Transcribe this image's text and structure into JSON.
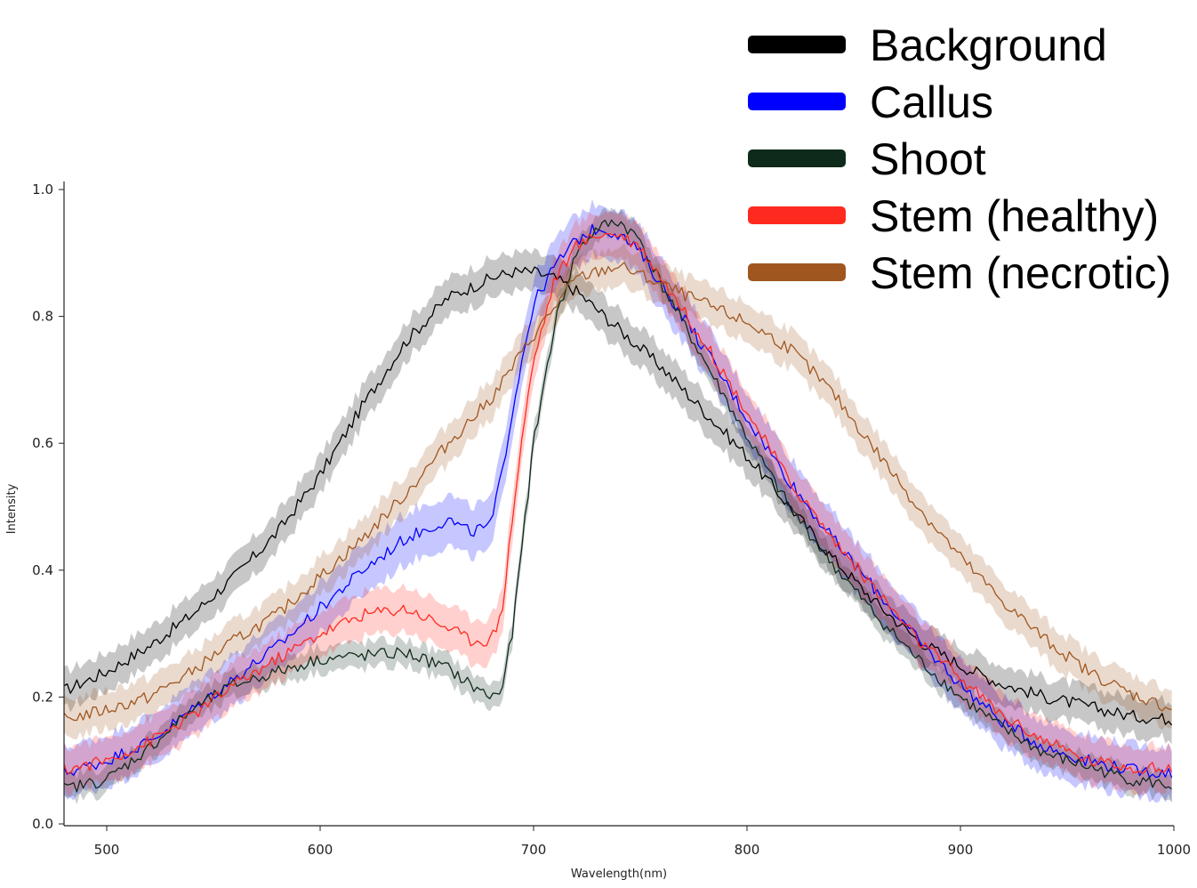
{
  "chart_data": {
    "type": "line",
    "xlabel": "Wavelength(nm)",
    "ylabel": "Intensity",
    "xlim": [
      480,
      1000
    ],
    "ylim": [
      0.0,
      1.0
    ],
    "xticks": [
      "500",
      "600",
      "700",
      "800",
      "900",
      "1000"
    ],
    "yticks": [
      "0.0",
      "0.2",
      "0.4",
      "0.6",
      "0.8",
      "1.0"
    ],
    "legend_position": "top-right",
    "series": [
      {
        "name": "Background",
        "color": "#000000",
        "x": [
          480,
          500,
          520,
          540,
          560,
          580,
          600,
          620,
          640,
          660,
          680,
          690,
          700,
          710,
          720,
          730,
          740,
          760,
          780,
          800,
          820,
          840,
          860,
          880,
          900,
          920,
          940,
          960,
          980,
          1000
        ],
        "values": [
          0.21,
          0.24,
          0.28,
          0.33,
          0.39,
          0.46,
          0.55,
          0.66,
          0.76,
          0.83,
          0.86,
          0.87,
          0.87,
          0.86,
          0.84,
          0.81,
          0.78,
          0.72,
          0.65,
          0.58,
          0.5,
          0.42,
          0.35,
          0.29,
          0.25,
          0.22,
          0.2,
          0.185,
          0.17,
          0.165
        ],
        "band": 0.03
      },
      {
        "name": "Callus",
        "color": "#0000ff",
        "x": [
          480,
          500,
          520,
          540,
          560,
          580,
          600,
          620,
          640,
          660,
          670,
          680,
          685,
          690,
          695,
          700,
          710,
          720,
          730,
          740,
          750,
          760,
          780,
          800,
          820,
          840,
          860,
          880,
          900,
          920,
          940,
          960,
          980,
          1000
        ],
        "values": [
          0.08,
          0.1,
          0.13,
          0.18,
          0.23,
          0.28,
          0.34,
          0.4,
          0.45,
          0.48,
          0.46,
          0.47,
          0.55,
          0.65,
          0.74,
          0.82,
          0.88,
          0.92,
          0.94,
          0.93,
          0.9,
          0.85,
          0.75,
          0.64,
          0.54,
          0.45,
          0.37,
          0.29,
          0.22,
          0.16,
          0.12,
          0.1,
          0.085,
          0.08
        ],
        "band": 0.04
      },
      {
        "name": "Shoot",
        "color": "#0e2a1a",
        "x": [
          480,
          500,
          520,
          540,
          560,
          580,
          600,
          620,
          640,
          660,
          670,
          680,
          685,
          690,
          695,
          700,
          710,
          720,
          730,
          740,
          750,
          760,
          780,
          800,
          820,
          840,
          860,
          880,
          900,
          920,
          940,
          960,
          980,
          1000
        ],
        "values": [
          0.055,
          0.07,
          0.12,
          0.18,
          0.22,
          0.24,
          0.26,
          0.265,
          0.27,
          0.245,
          0.22,
          0.2,
          0.21,
          0.3,
          0.45,
          0.6,
          0.79,
          0.9,
          0.94,
          0.95,
          0.92,
          0.85,
          0.73,
          0.61,
          0.5,
          0.41,
          0.33,
          0.26,
          0.2,
          0.15,
          0.11,
          0.09,
          0.07,
          0.06
        ],
        "band": 0.02
      },
      {
        "name": "Stem (healthy)",
        "color": "#ff2a1f",
        "x": [
          480,
          500,
          520,
          540,
          560,
          580,
          600,
          620,
          640,
          660,
          670,
          680,
          685,
          690,
          695,
          700,
          710,
          720,
          730,
          740,
          750,
          760,
          780,
          800,
          820,
          840,
          860,
          880,
          900,
          920,
          940,
          960,
          980,
          1000
        ],
        "values": [
          0.085,
          0.1,
          0.13,
          0.17,
          0.22,
          0.26,
          0.3,
          0.33,
          0.34,
          0.31,
          0.29,
          0.29,
          0.33,
          0.48,
          0.62,
          0.73,
          0.86,
          0.91,
          0.93,
          0.93,
          0.91,
          0.86,
          0.76,
          0.65,
          0.54,
          0.45,
          0.37,
          0.29,
          0.23,
          0.17,
          0.13,
          0.1,
          0.09,
          0.085
        ],
        "band": 0.035
      },
      {
        "name": "Stem (necrotic)",
        "color": "#a0561f",
        "x": [
          480,
          500,
          520,
          540,
          560,
          580,
          600,
          620,
          640,
          660,
          680,
          700,
          720,
          740,
          760,
          780,
          800,
          820,
          840,
          860,
          880,
          900,
          920,
          940,
          960,
          980,
          1000
        ],
        "values": [
          0.165,
          0.18,
          0.2,
          0.24,
          0.29,
          0.33,
          0.39,
          0.45,
          0.52,
          0.6,
          0.67,
          0.77,
          0.86,
          0.88,
          0.85,
          0.82,
          0.79,
          0.75,
          0.68,
          0.59,
          0.5,
          0.42,
          0.35,
          0.29,
          0.24,
          0.205,
          0.18
        ],
        "band": 0.03
      }
    ]
  }
}
